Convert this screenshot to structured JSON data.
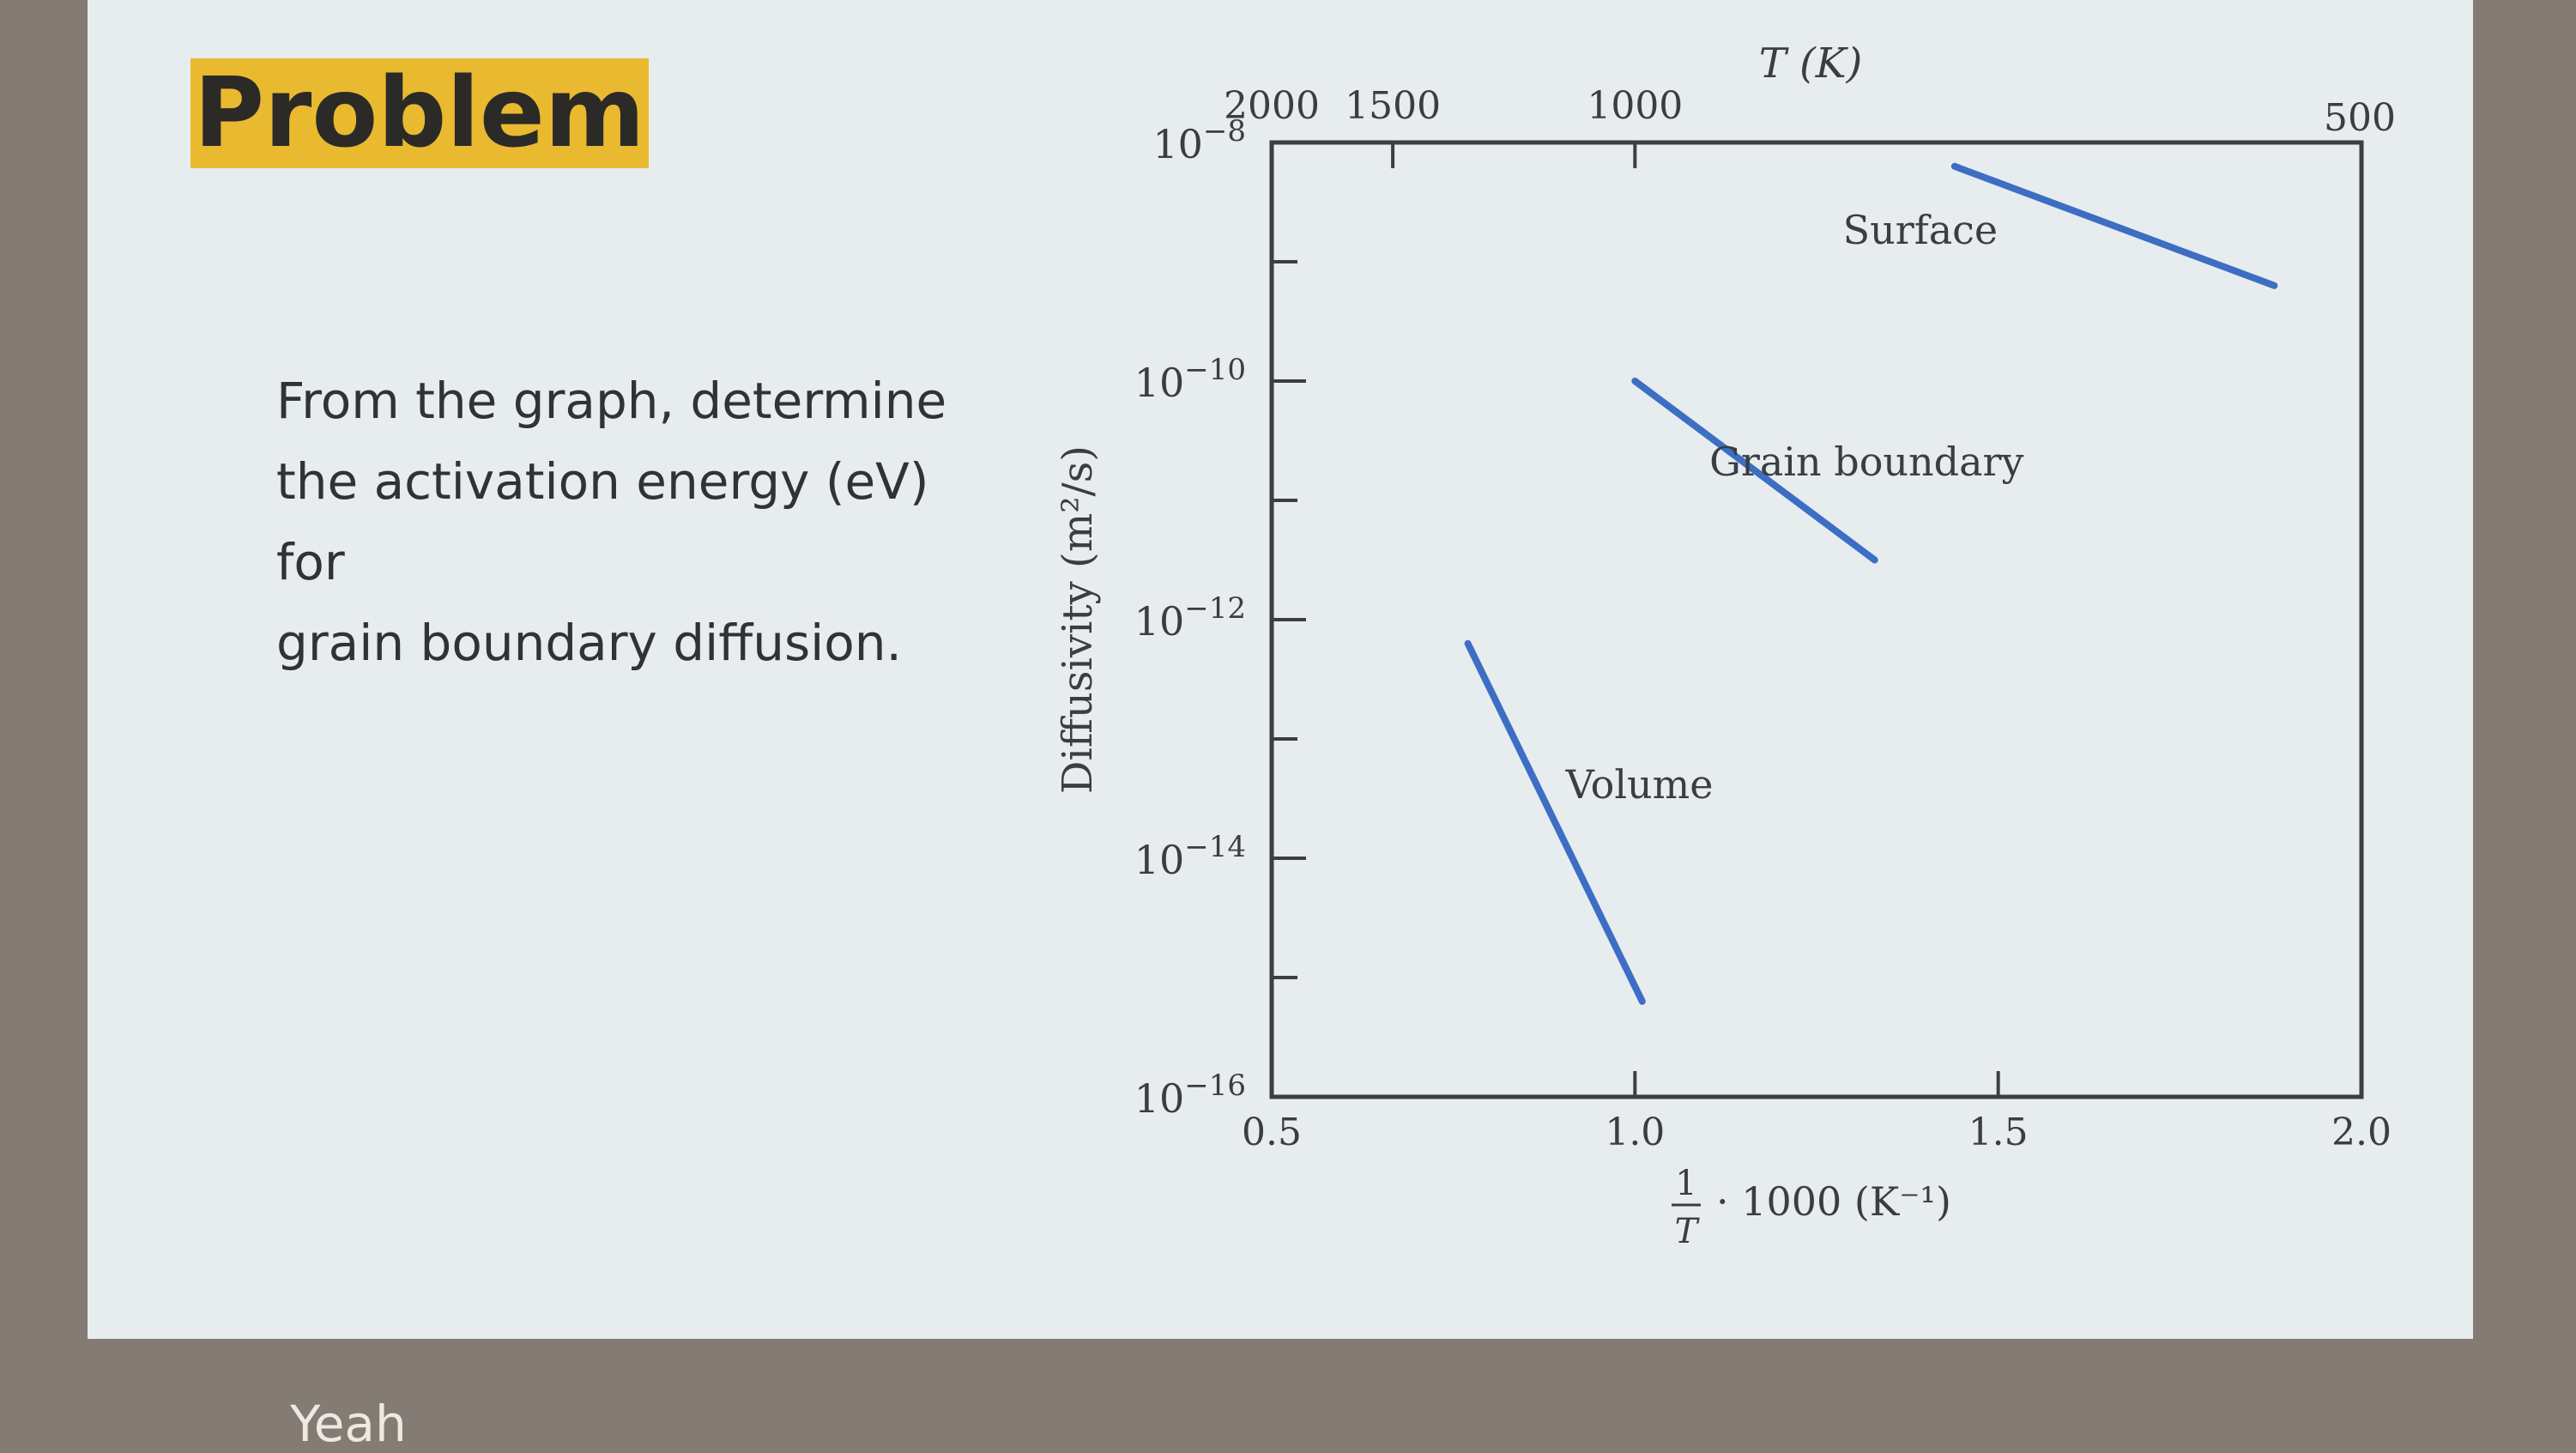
{
  "slide": {
    "title": "Problem",
    "question_lines": [
      "From the graph, determine",
      "the activation energy (eV) for",
      "grain boundary diffusion."
    ],
    "caption": "Yeah"
  },
  "chart_data": {
    "type": "line",
    "ylabel": "Diffusivity (m²/s)",
    "xlabel": "· 1000 (K⁻¹)",
    "xlabel_fraction": {
      "numerator": "1",
      "denominator": "T"
    },
    "top_axis_label": "T (K)",
    "x_range": [
      0.5,
      2.0
    ],
    "y_range_log10": [
      -16,
      -8
    ],
    "y_scale": "log",
    "x_ticks": [
      {
        "value": 0.5,
        "label": "0.5"
      },
      {
        "value": 1.0,
        "label": "1.0"
      },
      {
        "value": 1.5,
        "label": "1.5"
      },
      {
        "value": 2.0,
        "label": "2.0"
      }
    ],
    "y_ticks": [
      {
        "exp": -8,
        "base": "10",
        "sup": "−8"
      },
      {
        "exp": -10,
        "base": "10",
        "sup": "−10"
      },
      {
        "exp": -12,
        "base": "10",
        "sup": "−12"
      },
      {
        "exp": -14,
        "base": "10",
        "sup": "−14"
      },
      {
        "exp": -16,
        "base": "10",
        "sup": "−16"
      }
    ],
    "y_minor_ticks": [
      -9,
      -11,
      -13,
      -15
    ],
    "top_ticks": [
      {
        "T": 2000,
        "label": "2000"
      },
      {
        "T": 1500,
        "label": "1500"
      },
      {
        "T": 1000,
        "label": "1000"
      },
      {
        "T": 500,
        "label": "500"
      }
    ],
    "series": [
      {
        "name": "Surface",
        "points": [
          [
            1.44,
            -8.2
          ],
          [
            1.88,
            -9.2
          ]
        ]
      },
      {
        "name": "Grain boundary",
        "points": [
          [
            1.0,
            -10.0
          ],
          [
            1.33,
            -11.5
          ]
        ]
      },
      {
        "name": "Volume",
        "points": [
          [
            0.77,
            -12.2
          ],
          [
            1.01,
            -15.2
          ]
        ]
      }
    ],
    "line_color": "#3d6ec4",
    "grid": false
  }
}
